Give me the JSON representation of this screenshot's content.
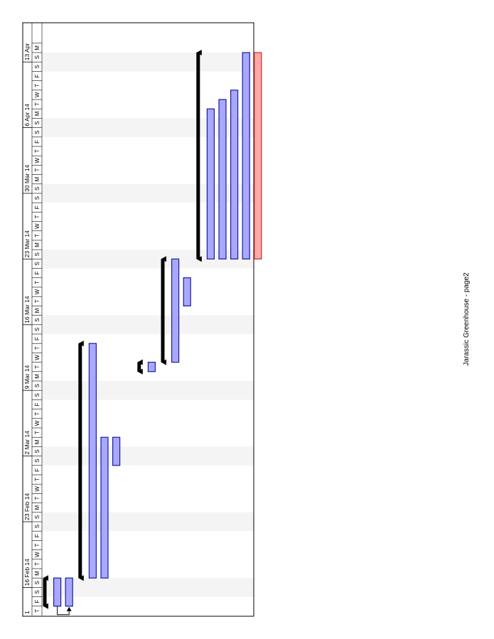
{
  "chart_data": {
    "type": "gantt",
    "orientation": "rotated-90",
    "footer_text": "Jarassic Greenhouse  -  page2",
    "timeline_start": "2014-02-13",
    "timeline_end": "2014-04-14",
    "week_labels": [
      {
        "date": "2014-02-16",
        "label": "16 Feb 14"
      },
      {
        "date": "2014-02-23",
        "label": "23 Feb 14"
      },
      {
        "date": "2014-03-02",
        "label": "2 Mar 14"
      },
      {
        "date": "2014-03-09",
        "label": "9 Mar 14"
      },
      {
        "date": "2014-03-16",
        "label": "16 Mar 14"
      },
      {
        "date": "2014-03-23",
        "label": "23 Mar 14"
      },
      {
        "date": "2014-03-30",
        "label": "30 Mar 14"
      },
      {
        "date": "2014-04-06",
        "label": "6 Apr 14"
      },
      {
        "date": "2014-04-13",
        "label": "13 Apr"
      }
    ],
    "partial_label": {
      "date": "2014-02-13",
      "label": "1"
    },
    "day_letters": [
      "S",
      "M",
      "T",
      "W",
      "T",
      "F",
      "S"
    ],
    "rows": [
      {
        "kind": "summary",
        "start": "2014-02-14",
        "end": "2014-02-17"
      },
      {
        "kind": "task",
        "start": "2014-02-14",
        "end": "2014-02-17"
      },
      {
        "kind": "task",
        "start": "2014-02-14",
        "end": "2014-02-17"
      },
      {
        "kind": "summary",
        "start": "2014-02-17",
        "end": "2014-03-14"
      },
      {
        "kind": "task",
        "start": "2014-02-17",
        "end": "2014-03-14"
      },
      {
        "kind": "task",
        "start": "2014-02-17",
        "end": "2014-03-04"
      },
      {
        "kind": "task",
        "start": "2014-03-01",
        "end": "2014-03-04"
      },
      {
        "kind": "gap"
      },
      {
        "kind": "summary",
        "start": "2014-03-11",
        "end": "2014-03-12"
      },
      {
        "kind": "task",
        "start": "2014-03-11",
        "end": "2014-03-12"
      },
      {
        "kind": "summary",
        "start": "2014-03-12",
        "end": "2014-03-23"
      },
      {
        "kind": "task",
        "start": "2014-03-12",
        "end": "2014-03-23"
      },
      {
        "kind": "task",
        "start": "2014-03-18",
        "end": "2014-03-21"
      },
      {
        "kind": "summary",
        "start": "2014-03-23",
        "end": "2014-04-14"
      },
      {
        "kind": "task",
        "start": "2014-03-23",
        "end": "2014-04-08"
      },
      {
        "kind": "task",
        "start": "2014-03-23",
        "end": "2014-04-09"
      },
      {
        "kind": "task",
        "start": "2014-03-23",
        "end": "2014-04-10"
      },
      {
        "kind": "task",
        "start": "2014-03-23",
        "end": "2014-04-14"
      },
      {
        "kind": "task",
        "start": "2014-03-23",
        "end": "2014-04-14",
        "critical": true
      }
    ],
    "dependencies": [
      {
        "from_row": 1,
        "to_row": 2,
        "at": "2014-02-14"
      }
    ],
    "colors": {
      "task_fill": "#a8a8ff",
      "task_stroke": "#1a1aa0",
      "critical_fill": "#ffa8a8",
      "critical_stroke": "#c03030",
      "summary": "#000000",
      "weekend_shade": "#f4f4f4",
      "grid": "#000000"
    }
  }
}
